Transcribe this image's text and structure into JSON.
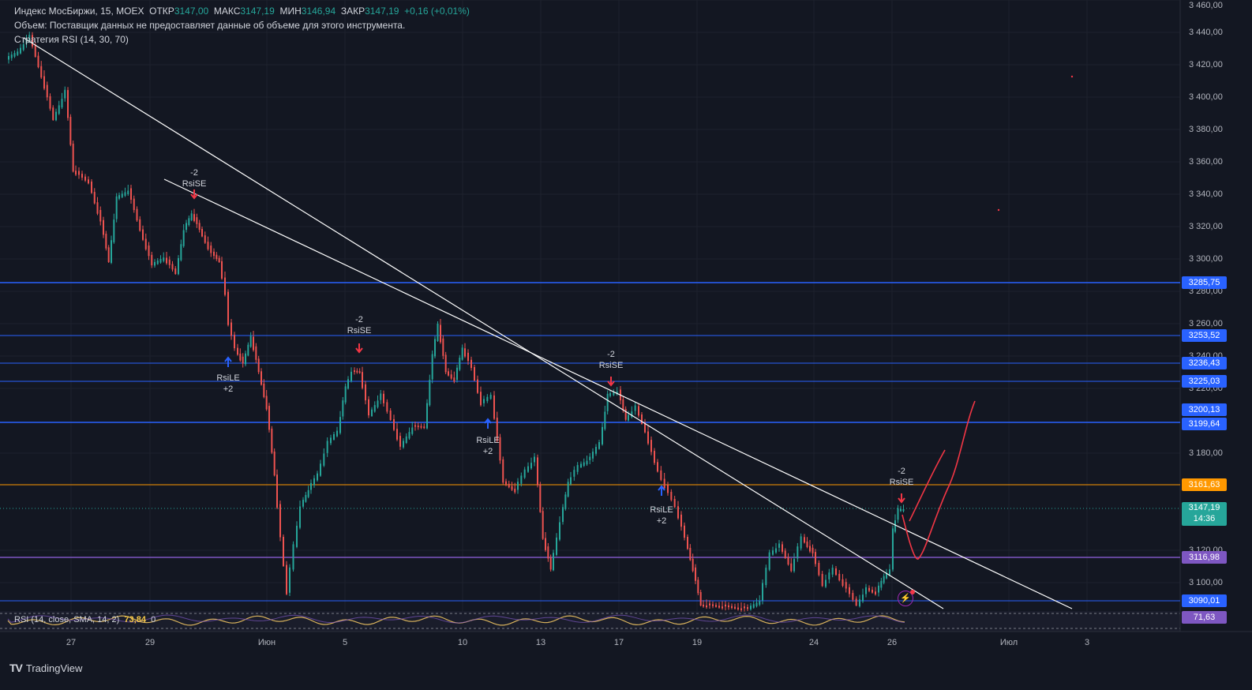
{
  "legend": {
    "symbol": "Индекс МосБиржи, 15, MOEX",
    "open_label": "ОТКР",
    "open_value": "3147,00",
    "high_label": "МАКС",
    "high_value": "3147,19",
    "low_label": "МИН",
    "low_value": "3146,94",
    "close_label": "ЗАКР",
    "close_value": "3147,19",
    "change": "+0,16 (+0,01%)",
    "volume_note": "Объем: Поставщик данных не предоставляет данные об объеме для этого инструмента.",
    "strategy": "Стратегия RSI (14, 30, 70)"
  },
  "rsi": {
    "label": "RSI (14, close, SMA, 14, 2)",
    "value": "73,84",
    "extra": "0",
    "scale_value": "71,63"
  },
  "price_axis": [
    "3 460,00",
    "3 440,00",
    "3 420,00",
    "3 400,00",
    "3 380,00",
    "3 360,00",
    "3 340,00",
    "3 320,00",
    "3 300,00",
    "3 280,00",
    "3 260,00",
    "3 240,00",
    "3 220,00",
    "3 180,00",
    "3 120,00",
    "3 100,00"
  ],
  "price_labels": [
    {
      "text": "3285,75",
      "color": "#2962ff"
    },
    {
      "text": "3253,52",
      "color": "#2962ff"
    },
    {
      "text": "3236,43",
      "color": "#2962ff"
    },
    {
      "text": "3225,03",
      "color": "#2962ff"
    },
    {
      "text": "3200,13",
      "color": "#2962ff"
    },
    {
      "text": "3199,64",
      "color": "#2962ff"
    },
    {
      "text": "3161,63",
      "color": "#ff9800"
    },
    {
      "text": "3147,19",
      "color": "#26a69a",
      "sub": "14:36"
    },
    {
      "text": "3116,98",
      "color": "#7e57c2"
    },
    {
      "text": "3090,01",
      "color": "#2962ff"
    }
  ],
  "time_axis": [
    "27",
    "29",
    "Июн",
    "5",
    "10",
    "13",
    "17",
    "19",
    "24",
    "26",
    "Июл",
    "3"
  ],
  "signals": [
    {
      "type": "short",
      "top": "-2",
      "bottom": "RsiSE"
    },
    {
      "type": "long",
      "top": "RsiLE",
      "bottom": "+2"
    },
    {
      "type": "short",
      "top": "-2",
      "bottom": "RsiSE"
    },
    {
      "type": "long",
      "top": "RsiLE",
      "bottom": "+2"
    },
    {
      "type": "short",
      "top": "-2",
      "bottom": "RsiSE"
    },
    {
      "type": "long",
      "top": "RsiLE",
      "bottom": "+2"
    },
    {
      "type": "short",
      "top": "-2",
      "bottom": "RsiSE"
    }
  ],
  "colors": {
    "background": "#131722",
    "up": "#26a69a",
    "down": "#ef5350",
    "level": "#2962ff",
    "orange_level": "#ff9800",
    "purple_level": "#7e57c2",
    "drawing": "#f23645",
    "trendline": "#ffffff"
  },
  "brand": "TradingView"
}
